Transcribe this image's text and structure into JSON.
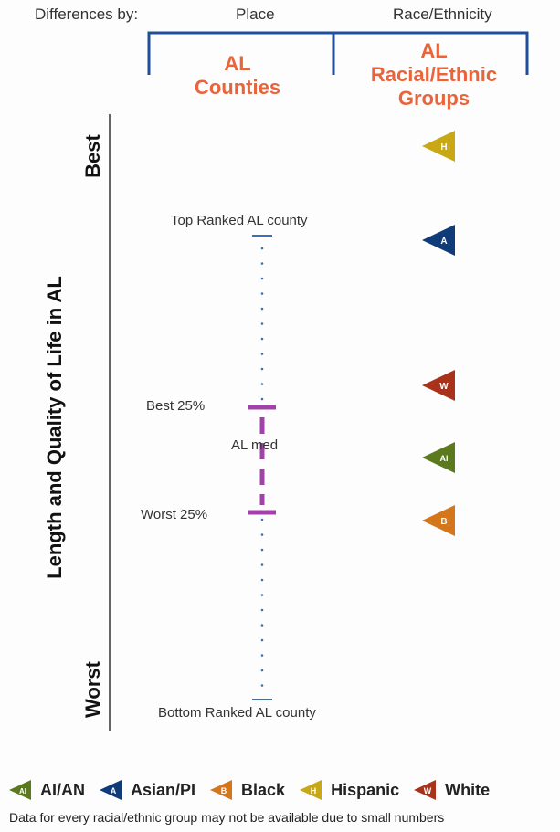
{
  "header": {
    "differences_by": "Differences by:",
    "place": "Place",
    "race_ethnicity": "Race/Ethnicity",
    "counties_line1": "AL",
    "counties_line2": "Counties",
    "groups_line1": "AL",
    "groups_line2": "Racial/Ethnic",
    "groups_line3": "Groups"
  },
  "axis": {
    "title": "Length and Quality of Life in AL",
    "best": "Best",
    "worst": "Worst"
  },
  "county_scale": {
    "top_label": "Top Ranked AL county",
    "best25_label": "Best 25%",
    "median_label": "AL med",
    "worst25_label": "Worst 25%",
    "bottom_label": "Bottom Ranked AL county"
  },
  "groups": [
    {
      "key": "hispanic",
      "letter": "H",
      "color": "#c8a814"
    },
    {
      "key": "asian",
      "letter": "A",
      "color": "#0f3b78"
    },
    {
      "key": "white",
      "letter": "W",
      "color": "#a8321a"
    },
    {
      "key": "aian",
      "letter": "AI",
      "color": "#5b7a1e"
    },
    {
      "key": "black",
      "letter": "B",
      "color": "#d4761c"
    }
  ],
  "legend": [
    {
      "letter": "AI",
      "label": "AI/AN",
      "color": "#5b7a1e"
    },
    {
      "letter": "A",
      "label": "Asian/PI",
      "color": "#0f3b78"
    },
    {
      "letter": "B",
      "label": "Black",
      "color": "#d4761c"
    },
    {
      "letter": "H",
      "label": "Hispanic",
      "color": "#c8a814"
    },
    {
      "letter": "W",
      "label": "White",
      "color": "#a8321a"
    }
  ],
  "note": "Data for every racial/ethnic group may not be available due to small numbers",
  "colors": {
    "bracket": "#1f4e9a",
    "range": "#a142a8",
    "endcap": "#3b6fb6",
    "dots": "#3b6fb6"
  }
}
